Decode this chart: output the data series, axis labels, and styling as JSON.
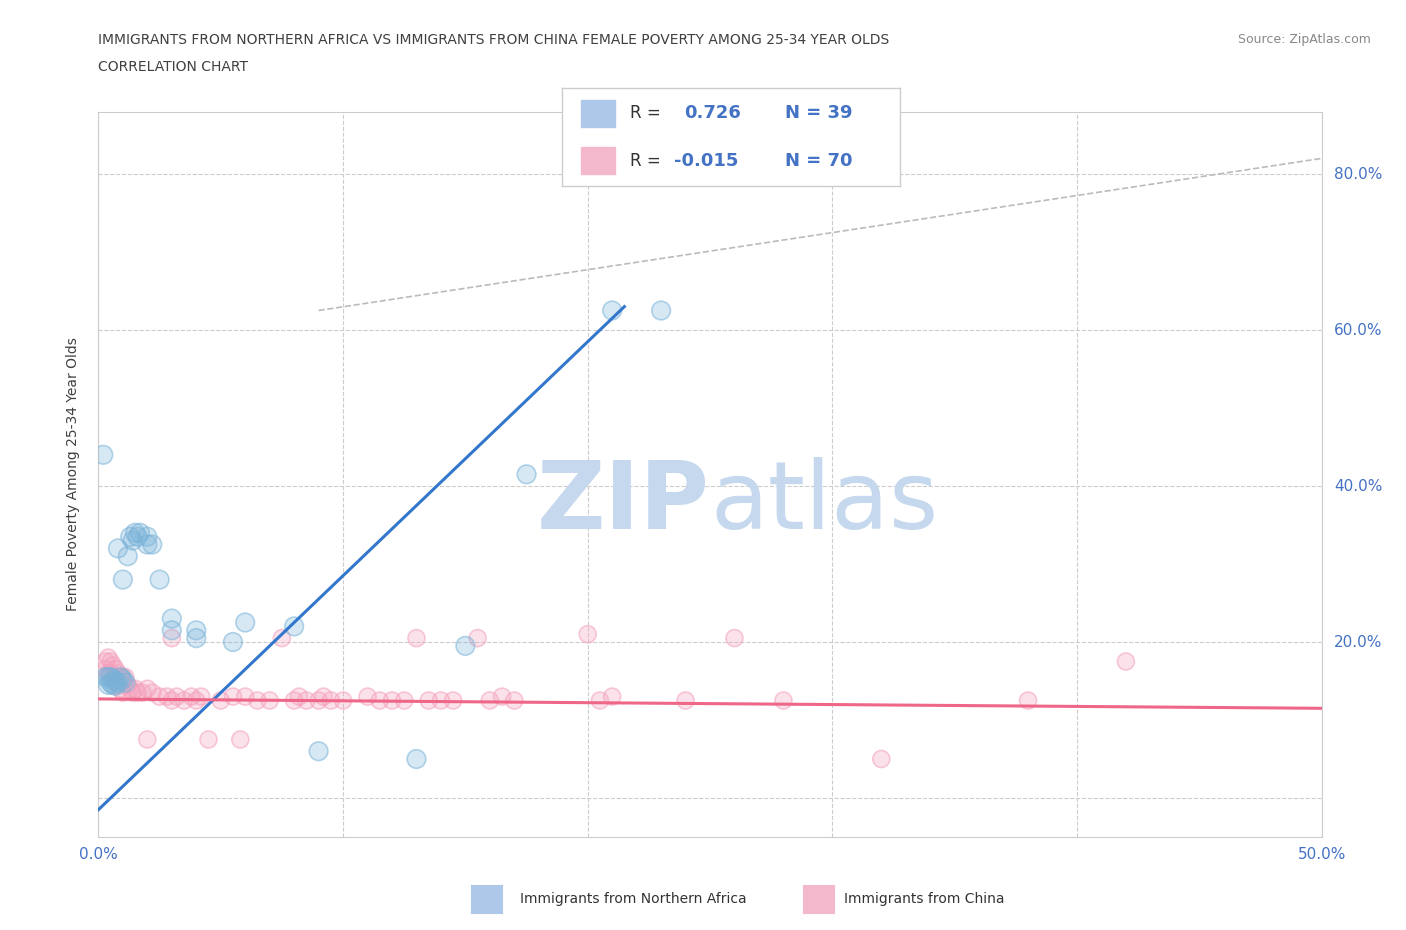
{
  "title_line1": "IMMIGRANTS FROM NORTHERN AFRICA VS IMMIGRANTS FROM CHINA FEMALE POVERTY AMONG 25-34 YEAR OLDS",
  "title_line2": "CORRELATION CHART",
  "source_text": "Source: ZipAtlas.com",
  "ylabel": "Female Poverty Among 25-34 Year Olds",
  "xlim": [
    0.0,
    0.5
  ],
  "ylim": [
    -0.05,
    0.88
  ],
  "background_color": "#ffffff",
  "blue_color": "#7ab3d9",
  "pink_color": "#f4a0bc",
  "blue_scatter": [
    [
      0.003,
      0.155
    ],
    [
      0.004,
      0.155
    ],
    [
      0.004,
      0.145
    ],
    [
      0.005,
      0.155
    ],
    [
      0.005,
      0.148
    ],
    [
      0.006,
      0.152
    ],
    [
      0.006,
      0.145
    ],
    [
      0.007,
      0.15
    ],
    [
      0.007,
      0.144
    ],
    [
      0.008,
      0.148
    ],
    [
      0.008,
      0.32
    ],
    [
      0.009,
      0.155
    ],
    [
      0.01,
      0.152
    ],
    [
      0.01,
      0.28
    ],
    [
      0.011,
      0.148
    ],
    [
      0.012,
      0.31
    ],
    [
      0.013,
      0.335
    ],
    [
      0.014,
      0.33
    ],
    [
      0.015,
      0.34
    ],
    [
      0.002,
      0.44
    ],
    [
      0.016,
      0.335
    ],
    [
      0.017,
      0.34
    ],
    [
      0.02,
      0.335
    ],
    [
      0.02,
      0.325
    ],
    [
      0.022,
      0.325
    ],
    [
      0.025,
      0.28
    ],
    [
      0.03,
      0.23
    ],
    [
      0.03,
      0.215
    ],
    [
      0.04,
      0.215
    ],
    [
      0.04,
      0.205
    ],
    [
      0.055,
      0.2
    ],
    [
      0.06,
      0.225
    ],
    [
      0.08,
      0.22
    ],
    [
      0.09,
      0.06
    ],
    [
      0.13,
      0.05
    ],
    [
      0.15,
      0.195
    ],
    [
      0.175,
      0.415
    ],
    [
      0.21,
      0.625
    ],
    [
      0.23,
      0.625
    ]
  ],
  "pink_scatter": [
    [
      0.003,
      0.175
    ],
    [
      0.003,
      0.165
    ],
    [
      0.004,
      0.18
    ],
    [
      0.004,
      0.16
    ],
    [
      0.005,
      0.175
    ],
    [
      0.005,
      0.16
    ],
    [
      0.006,
      0.17
    ],
    [
      0.006,
      0.155
    ],
    [
      0.007,
      0.165
    ],
    [
      0.007,
      0.15
    ],
    [
      0.008,
      0.16
    ],
    [
      0.008,
      0.145
    ],
    [
      0.009,
      0.155
    ],
    [
      0.009,
      0.14
    ],
    [
      0.01,
      0.155
    ],
    [
      0.01,
      0.135
    ],
    [
      0.011,
      0.155
    ],
    [
      0.012,
      0.145
    ],
    [
      0.013,
      0.14
    ],
    [
      0.014,
      0.135
    ],
    [
      0.015,
      0.14
    ],
    [
      0.016,
      0.135
    ],
    [
      0.018,
      0.135
    ],
    [
      0.02,
      0.14
    ],
    [
      0.02,
      0.075
    ],
    [
      0.022,
      0.135
    ],
    [
      0.025,
      0.13
    ],
    [
      0.028,
      0.13
    ],
    [
      0.03,
      0.205
    ],
    [
      0.03,
      0.125
    ],
    [
      0.032,
      0.13
    ],
    [
      0.035,
      0.125
    ],
    [
      0.038,
      0.13
    ],
    [
      0.04,
      0.125
    ],
    [
      0.042,
      0.13
    ],
    [
      0.045,
      0.075
    ],
    [
      0.05,
      0.125
    ],
    [
      0.055,
      0.13
    ],
    [
      0.058,
      0.075
    ],
    [
      0.06,
      0.13
    ],
    [
      0.065,
      0.125
    ],
    [
      0.07,
      0.125
    ],
    [
      0.075,
      0.205
    ],
    [
      0.08,
      0.125
    ],
    [
      0.082,
      0.13
    ],
    [
      0.085,
      0.125
    ],
    [
      0.09,
      0.125
    ],
    [
      0.092,
      0.13
    ],
    [
      0.095,
      0.125
    ],
    [
      0.1,
      0.125
    ],
    [
      0.11,
      0.13
    ],
    [
      0.115,
      0.125
    ],
    [
      0.12,
      0.125
    ],
    [
      0.125,
      0.125
    ],
    [
      0.13,
      0.205
    ],
    [
      0.135,
      0.125
    ],
    [
      0.14,
      0.125
    ],
    [
      0.145,
      0.125
    ],
    [
      0.155,
      0.205
    ],
    [
      0.16,
      0.125
    ],
    [
      0.165,
      0.13
    ],
    [
      0.17,
      0.125
    ],
    [
      0.2,
      0.21
    ],
    [
      0.205,
      0.125
    ],
    [
      0.21,
      0.13
    ],
    [
      0.24,
      0.125
    ],
    [
      0.26,
      0.205
    ],
    [
      0.28,
      0.125
    ],
    [
      0.32,
      0.05
    ],
    [
      0.38,
      0.125
    ],
    [
      0.42,
      0.175
    ]
  ],
  "blue_line_x": [
    0.0,
    0.215
  ],
  "blue_line_y": [
    -0.015,
    0.63
  ],
  "pink_line_x": [
    0.0,
    0.5
  ],
  "pink_line_y": [
    0.127,
    0.115
  ],
  "diag_line_x": [
    0.09,
    0.5
  ],
  "diag_line_y": [
    0.625,
    0.82
  ],
  "title_color": "#404040",
  "grid_color": "#d0d0d0",
  "watermark_color_zip": "#c5d8ee",
  "watermark_color_atlas": "#c5d8ee"
}
